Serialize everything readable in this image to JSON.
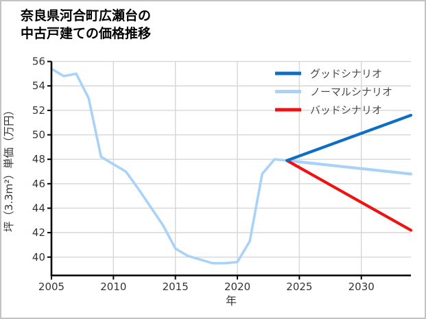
{
  "header": {
    "title_line1": "奈良県河合町広瀬台の",
    "title_line2": "中古戸建ての価格推移"
  },
  "chart_data": {
    "type": "line",
    "title": "奈良県河合町広瀬台の中古戸建ての価格推移",
    "xlabel": "年",
    "ylabel": "坪（3.3m²）単価（万円）",
    "xlim": [
      2005,
      2034
    ],
    "ylim": [
      38.5,
      56.0
    ],
    "x_ticks": [
      2005,
      2010,
      2015,
      2020,
      2025,
      2030
    ],
    "y_ticks": [
      40,
      42,
      44,
      46,
      48,
      50,
      52,
      54,
      56
    ],
    "grid": true,
    "legend_position": "top-right",
    "colors": {
      "good": "#0d6ec5",
      "normal": "#a9d2f8",
      "bad": "#f01111",
      "history": "#a9d2f8",
      "grid": "#d6d6d6",
      "axis": "#000000",
      "tick_label": "#333333",
      "axis_label": "#333333",
      "legend_label": "#4a4a4a"
    },
    "series": [
      {
        "id": "history",
        "legend": null,
        "color_key": "history",
        "x": [
          2005,
          2006,
          2007,
          2008,
          2009,
          2010,
          2011,
          2012,
          2013,
          2014,
          2015,
          2016,
          2017,
          2018,
          2019,
          2020,
          2021,
          2022,
          2023,
          2024
        ],
        "y": [
          55.4,
          54.8,
          55.0,
          53.0,
          48.2,
          47.6,
          47.0,
          45.6,
          44.1,
          42.6,
          40.7,
          40.1,
          39.8,
          39.5,
          39.5,
          39.6,
          41.3,
          46.8,
          48.0,
          47.9
        ]
      },
      {
        "id": "normal",
        "legend": "ノーマルシナリオ",
        "color_key": "normal",
        "x": [
          2024,
          2034
        ],
        "y": [
          47.9,
          46.8
        ]
      },
      {
        "id": "bad",
        "legend": "バッドシナリオ",
        "color_key": "bad",
        "x": [
          2024,
          2034
        ],
        "y": [
          47.9,
          42.2
        ]
      },
      {
        "id": "good",
        "legend": "グッドシナリオ",
        "color_key": "good",
        "x": [
          2024,
          2034
        ],
        "y": [
          47.9,
          51.6
        ]
      }
    ],
    "legend_items": [
      {
        "label": "グッドシナリオ",
        "color_key": "good"
      },
      {
        "label": "ノーマルシナリオ",
        "color_key": "normal"
      },
      {
        "label": "バッドシナリオ",
        "color_key": "bad"
      }
    ]
  }
}
